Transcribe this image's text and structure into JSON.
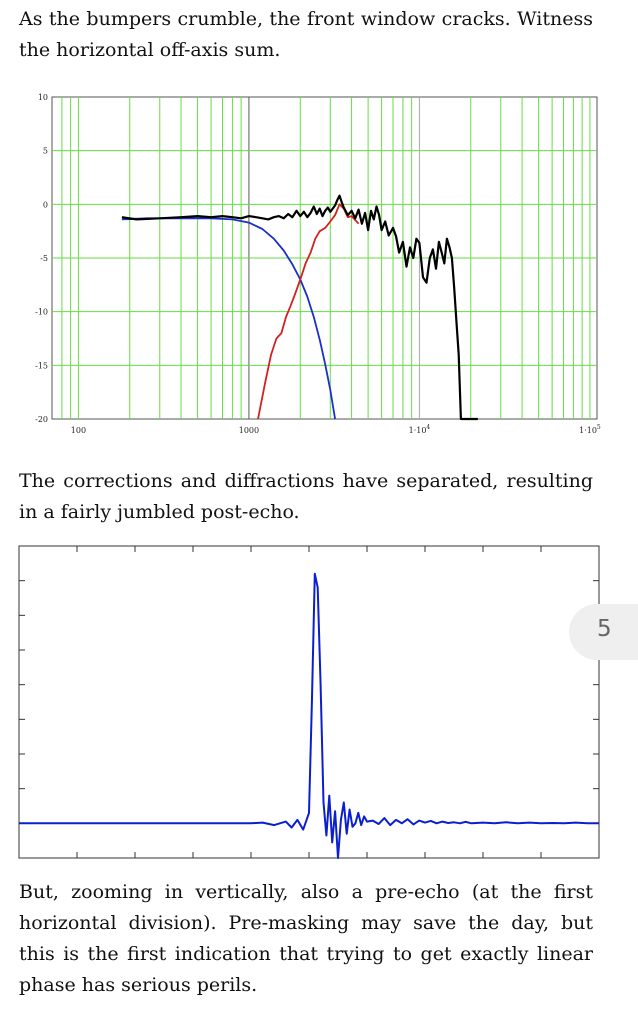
{
  "paragraphs": {
    "p1": "As the bumpers crumble, the front window cracks. Witness the horizontal off-axis sum.",
    "p2": "The corrections and diffractions have separated, resulting in a fairly jumbled post-echo.",
    "p3": "But, zooming in vertically, also a pre-echo (at the first horizontal division). Pre-masking may save the day, but this is the first indication that trying to get exactly linear phase has serious perils."
  },
  "page_number": "5",
  "chart_data": [
    {
      "type": "line",
      "title": "",
      "xlabel": "",
      "ylabel": "",
      "x_scale": "log",
      "xlim": [
        70,
        110000
      ],
      "ylim": [
        -20,
        10
      ],
      "grid": true,
      "grid_color": "#66dd44",
      "y_ticks": [
        10,
        5,
        0,
        -5,
        -10,
        -15,
        -20
      ],
      "y_tick_labels": [
        "10",
        "5",
        "0",
        "-5",
        "-10",
        "-15",
        "-20"
      ],
      "x_tick_labels": [
        {
          "x": 100,
          "label": "100"
        },
        {
          "x": 1000,
          "label": "1000"
        },
        {
          "x": 10000,
          "label": "1·10",
          "sup": "4"
        },
        {
          "x": 100000,
          "label": "1·10",
          "sup": "5"
        }
      ],
      "series": [
        {
          "color": "#1a2fcc",
          "x": [
            180,
            250,
            400,
            600,
            800,
            1000,
            1200,
            1400,
            1600,
            1800,
            2000,
            2200,
            2400,
            2600,
            2800,
            3000,
            3200
          ],
          "y": [
            -1.4,
            -1.3,
            -1.3,
            -1.3,
            -1.4,
            -1.7,
            -2.3,
            -3.2,
            -4.3,
            -5.6,
            -7.0,
            -8.6,
            -10.5,
            -12.6,
            -14.9,
            -17.3,
            -20
          ]
        },
        {
          "color": "#d42020",
          "x": [
            1130,
            1250,
            1350,
            1450,
            1550,
            1650,
            1750,
            1850,
            1950,
            2050,
            2150,
            2300,
            2450,
            2600,
            2800,
            3000,
            3200,
            3400,
            3600,
            3800,
            4000,
            4400
          ],
          "y": [
            -20,
            -16.5,
            -14,
            -12.5,
            -12,
            -10.5,
            -9.5,
            -8.5,
            -7.5,
            -6.5,
            -5.5,
            -4.5,
            -3.2,
            -2.5,
            -2.2,
            -1.6,
            -1.0,
            0.0,
            -0.4,
            -1.2,
            -1.1,
            -1.8
          ]
        },
        {
          "color": "#000000",
          "x": [
            180,
            220,
            300,
            400,
            500,
            600,
            700,
            800,
            900,
            1000,
            1100,
            1200,
            1300,
            1400,
            1500,
            1600,
            1700,
            1800,
            1900,
            2000,
            2100,
            2200,
            2300,
            2400,
            2500,
            2600,
            2700,
            2800,
            2900,
            3000,
            3100,
            3200,
            3300,
            3400,
            3500,
            3600,
            3800,
            4000,
            4200,
            4400,
            4600,
            4800,
            5000,
            5200,
            5400,
            5600,
            5800,
            6000,
            6300,
            6600,
            7000,
            7300,
            7600,
            8000,
            8400,
            8800,
            9200,
            9600,
            10000,
            10500,
            11000,
            11500,
            12000,
            12500,
            13000,
            13500,
            14000,
            14500,
            15000,
            15500,
            16000,
            16500,
            17000,
            17500,
            18000,
            18500,
            19000,
            19500,
            20000,
            20500,
            21000,
            21500,
            22000
          ],
          "y": [
            -1.2,
            -1.4,
            -1.3,
            -1.2,
            -1.1,
            -1.2,
            -1.1,
            -1.2,
            -1.3,
            -1.1,
            -1.2,
            -1.3,
            -1.4,
            -1.2,
            -1.1,
            -1.3,
            -0.9,
            -1.2,
            -0.6,
            -1.1,
            -0.7,
            -1.2,
            -0.8,
            -0.2,
            -0.9,
            -0.4,
            -1.1,
            -0.6,
            -0.3,
            -0.7,
            -0.4,
            -0.1,
            0.4,
            0.8,
            0.2,
            -0.3,
            -1.0,
            -0.6,
            -1.3,
            -0.5,
            -1.8,
            -0.8,
            -2.4,
            -0.6,
            -1.4,
            -0.2,
            -1.0,
            -2.4,
            -1.6,
            -2.9,
            -2.2,
            -3.0,
            -4.5,
            -3.5,
            -5.8,
            -4.0,
            -5.0,
            -3.2,
            -3.6,
            -6.8,
            -7.3,
            -5.0,
            -4.2,
            -6.0,
            -3.5,
            -4.5,
            -5.5,
            -3.2,
            -4.0,
            -5.0,
            -7.8,
            -11,
            -14,
            -20,
            -20,
            -20,
            -20,
            -20,
            -20,
            -20,
            -20,
            -20,
            -20
          ]
        }
      ]
    },
    {
      "type": "line",
      "title": "",
      "xlabel": "",
      "ylabel": "",
      "xlim": [
        0,
        100
      ],
      "ylim": [
        -1,
        8
      ],
      "grid": false,
      "x_tick_marks": 10,
      "y_tick_marks": 8,
      "series": [
        {
          "color": "#0b1fd0",
          "x": [
            0,
            20,
            40,
            42,
            44,
            46,
            47,
            48,
            49,
            50,
            50.5,
            51,
            51.5,
            52,
            52.5,
            53,
            53.5,
            54,
            54.5,
            55,
            55.5,
            56,
            56.5,
            57,
            57.5,
            58,
            58.5,
            59,
            59.5,
            60,
            61,
            62,
            63,
            64,
            65,
            66,
            67,
            68,
            69,
            70,
            71,
            72,
            73,
            74,
            75,
            76,
            77,
            78,
            80,
            82,
            84,
            86,
            88,
            90,
            92,
            94,
            96,
            98,
            100
          ],
          "y": [
            0,
            0,
            0,
            0.02,
            -0.05,
            0.05,
            -0.12,
            0.1,
            -0.18,
            0.3,
            3.5,
            7.2,
            6.8,
            4.0,
            0.6,
            -0.35,
            0.8,
            -0.55,
            0.35,
            -1.0,
            0.1,
            0.6,
            -0.3,
            0.4,
            -0.1,
            0.0,
            0.3,
            -0.05,
            0.2,
            0.05,
            0.08,
            -0.02,
            0.15,
            -0.05,
            0.1,
            0.0,
            0.12,
            -0.03,
            0.08,
            0.02,
            0.07,
            0.0,
            0.05,
            0.01,
            0.03,
            0.0,
            0.04,
            0.0,
            0.02,
            0.0,
            0.03,
            0.0,
            0.02,
            0.0,
            0.01,
            0.0,
            0.02,
            0.0,
            0.0
          ]
        }
      ]
    }
  ]
}
